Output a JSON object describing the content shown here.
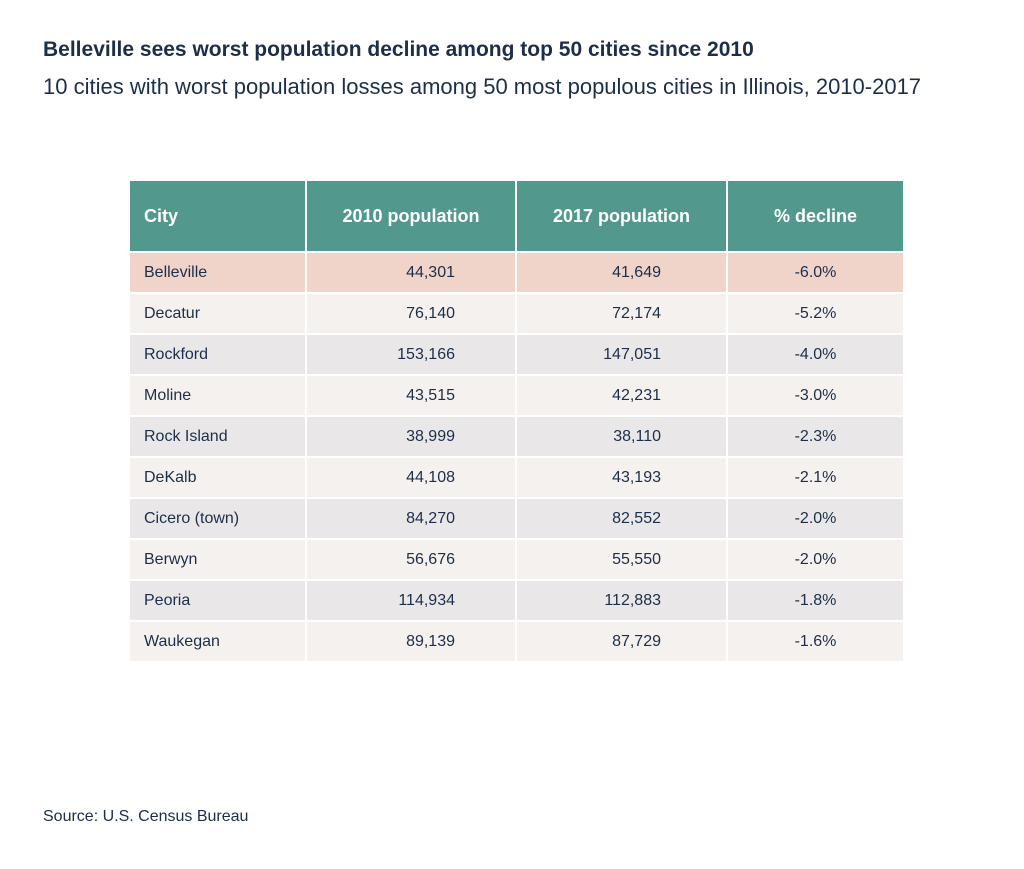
{
  "title": "Belleville sees worst population decline among top 50 cities since 2010",
  "subtitle": "10 cities with worst population losses among 50 most populous cities in Illinois, 2010-2017",
  "source": "Source: U.S. Census Bureau",
  "colors": {
    "header": "#52988c",
    "highlight": "#f0d3c9",
    "row_light": "#f5f1ee",
    "row_gray": "#e9e7e8",
    "text": "#1c2e4a"
  },
  "chart_data": {
    "type": "table",
    "title": "Belleville sees worst population decline among top 50 cities since 2010",
    "columns": [
      "City",
      "2010 population",
      "2017 population",
      "% decline"
    ],
    "highlighted_row": "Belleville",
    "rows": [
      [
        "Belleville",
        "44,301",
        "41,649",
        "-6.0%"
      ],
      [
        "Decatur",
        "76,140",
        "72,174",
        "-5.2%"
      ],
      [
        "Rockford",
        "153,166",
        "147,051",
        "-4.0%"
      ],
      [
        "Moline",
        "43,515",
        "42,231",
        "-3.0%"
      ],
      [
        "Rock Island",
        "38,999",
        "38,110",
        "-2.3%"
      ],
      [
        "DeKalb",
        "44,108",
        "43,193",
        "-2.1%"
      ],
      [
        "Cicero (town)",
        "84,270",
        "82,552",
        "-2.0%"
      ],
      [
        "Berwyn",
        "56,676",
        "55,550",
        "-2.0%"
      ],
      [
        "Peoria",
        "114,934",
        "112,883",
        "-1.8%"
      ],
      [
        "Waukegan",
        "89,139",
        "87,729",
        "-1.6%"
      ]
    ]
  }
}
